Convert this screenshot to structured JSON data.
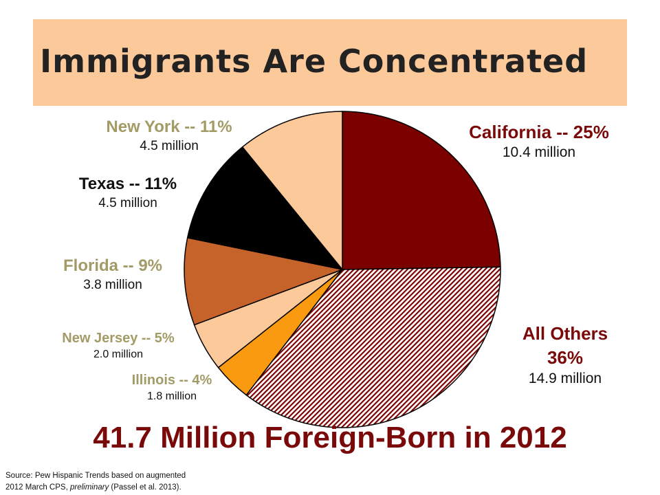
{
  "title": "Immigrants Are Concentrated",
  "total_caption": "41.7 Million Foreign-Born in 2012",
  "source": {
    "line1": "Source: Pew Hispanic Trends based on augmented",
    "line2_prefix": "2012 March CPS, ",
    "line2_italic": "preliminary ",
    "line2_suffix": "(Passel et al. 2013)."
  },
  "colors": {
    "title_band": "#fcc99a",
    "california": "#7b0000",
    "all_others_stripe": "#7b0000",
    "illinois": "#f99a10",
    "new_jersey": "#fcc99a",
    "florida": "#c6632b",
    "texas": "#000000",
    "new_york": "#fcc99a"
  },
  "chart_data": {
    "type": "pie",
    "title": "Immigrants Are Concentrated",
    "slices": [
      {
        "label": "California -- 25%",
        "percent": 25,
        "value_text": "10.4 million",
        "value_millions": 10.4,
        "color": "#7b0000",
        "pattern": "solid"
      },
      {
        "label": "All Others",
        "percent_text": "36%",
        "percent": 36,
        "value_text": "14.9 million",
        "value_millions": 14.9,
        "color": "#7b0000",
        "pattern": "diagonal-stripes"
      },
      {
        "label": "Illinois -- 4%",
        "percent": 4,
        "value_text": "1.8 million",
        "value_millions": 1.8,
        "color": "#f99a10",
        "pattern": "solid"
      },
      {
        "label": "New Jersey -- 5%",
        "percent": 5,
        "value_text": "2.0 million",
        "value_millions": 2.0,
        "color": "#fcc99a",
        "pattern": "solid"
      },
      {
        "label": "Florida -- 9%",
        "percent": 9,
        "value_text": "3.8 million",
        "value_millions": 3.8,
        "color": "#c6632b",
        "pattern": "solid"
      },
      {
        "label": "Texas -- 11%",
        "percent": 11,
        "value_text": "4.5 million",
        "value_millions": 4.5,
        "color": "#000000",
        "pattern": "solid"
      },
      {
        "label": "New York -- 11%",
        "percent": 11,
        "value_text": "4.5 million",
        "value_millions": 4.5,
        "color": "#fcc99a",
        "pattern": "solid"
      }
    ],
    "total_text": "41.7 Million Foreign-Born in 2012"
  }
}
